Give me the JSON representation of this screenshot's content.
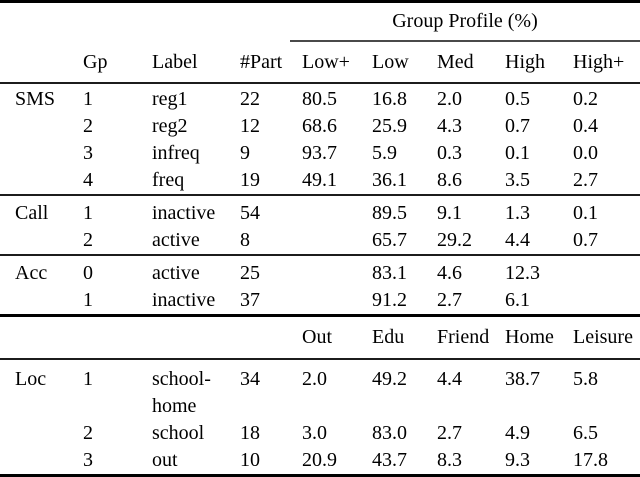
{
  "colors": {
    "background": "#ffffff",
    "text": "#000000",
    "rule_heavy": "#000000",
    "rule_light": "#1c1c1c",
    "spanner_rule": "#4a4a4a"
  },
  "header": {
    "spanner_title": "Group Profile (%)",
    "columns": [
      "Gp",
      "Label",
      "#Part",
      "Low+",
      "Low",
      "Med",
      "High",
      "High+"
    ]
  },
  "second_header": [
    "Out",
    "Edu",
    "Friend",
    "Home",
    "Leisure"
  ],
  "sections": [
    {
      "name": "SMS",
      "rows": [
        [
          "SMS",
          "1",
          "reg1",
          "22",
          "80.5",
          "16.8",
          "2.0",
          "0.5",
          "0.2"
        ],
        [
          "",
          "2",
          "reg2",
          "12",
          "68.6",
          "25.9",
          "4.3",
          "0.7",
          "0.4"
        ],
        [
          "",
          "3",
          "infreq",
          "9",
          "93.7",
          "5.9",
          "0.3",
          "0.1",
          "0.0"
        ],
        [
          "",
          "4",
          "freq",
          "19",
          "49.1",
          "36.1",
          "8.6",
          "3.5",
          "2.7"
        ]
      ]
    },
    {
      "name": "Call",
      "rows": [
        [
          "Call",
          "1",
          "inactive",
          "54",
          "",
          "89.5",
          "9.1",
          "1.3",
          "0.1"
        ],
        [
          "",
          "2",
          "active",
          "8",
          "",
          "65.7",
          "29.2",
          "4.4",
          "0.7"
        ]
      ]
    },
    {
      "name": "Acc",
      "rows": [
        [
          "Acc",
          "0",
          "active",
          "25",
          "",
          "83.1",
          "4.6",
          "12.3",
          ""
        ],
        [
          "",
          "1",
          "inactive",
          "37",
          "",
          "91.2",
          "2.7",
          "6.1",
          ""
        ]
      ]
    },
    {
      "name": "Loc",
      "rows": [
        [
          "Loc",
          "1",
          "school-home",
          "34",
          "2.0",
          "49.2",
          "4.4",
          "38.7",
          "5.8"
        ],
        [
          "",
          "2",
          "school",
          "18",
          "3.0",
          "83.0",
          "2.7",
          "4.9",
          "6.5"
        ],
        [
          "",
          "3",
          "out",
          "10",
          "20.9",
          "43.7",
          "8.3",
          "9.3",
          "17.8"
        ]
      ]
    }
  ]
}
